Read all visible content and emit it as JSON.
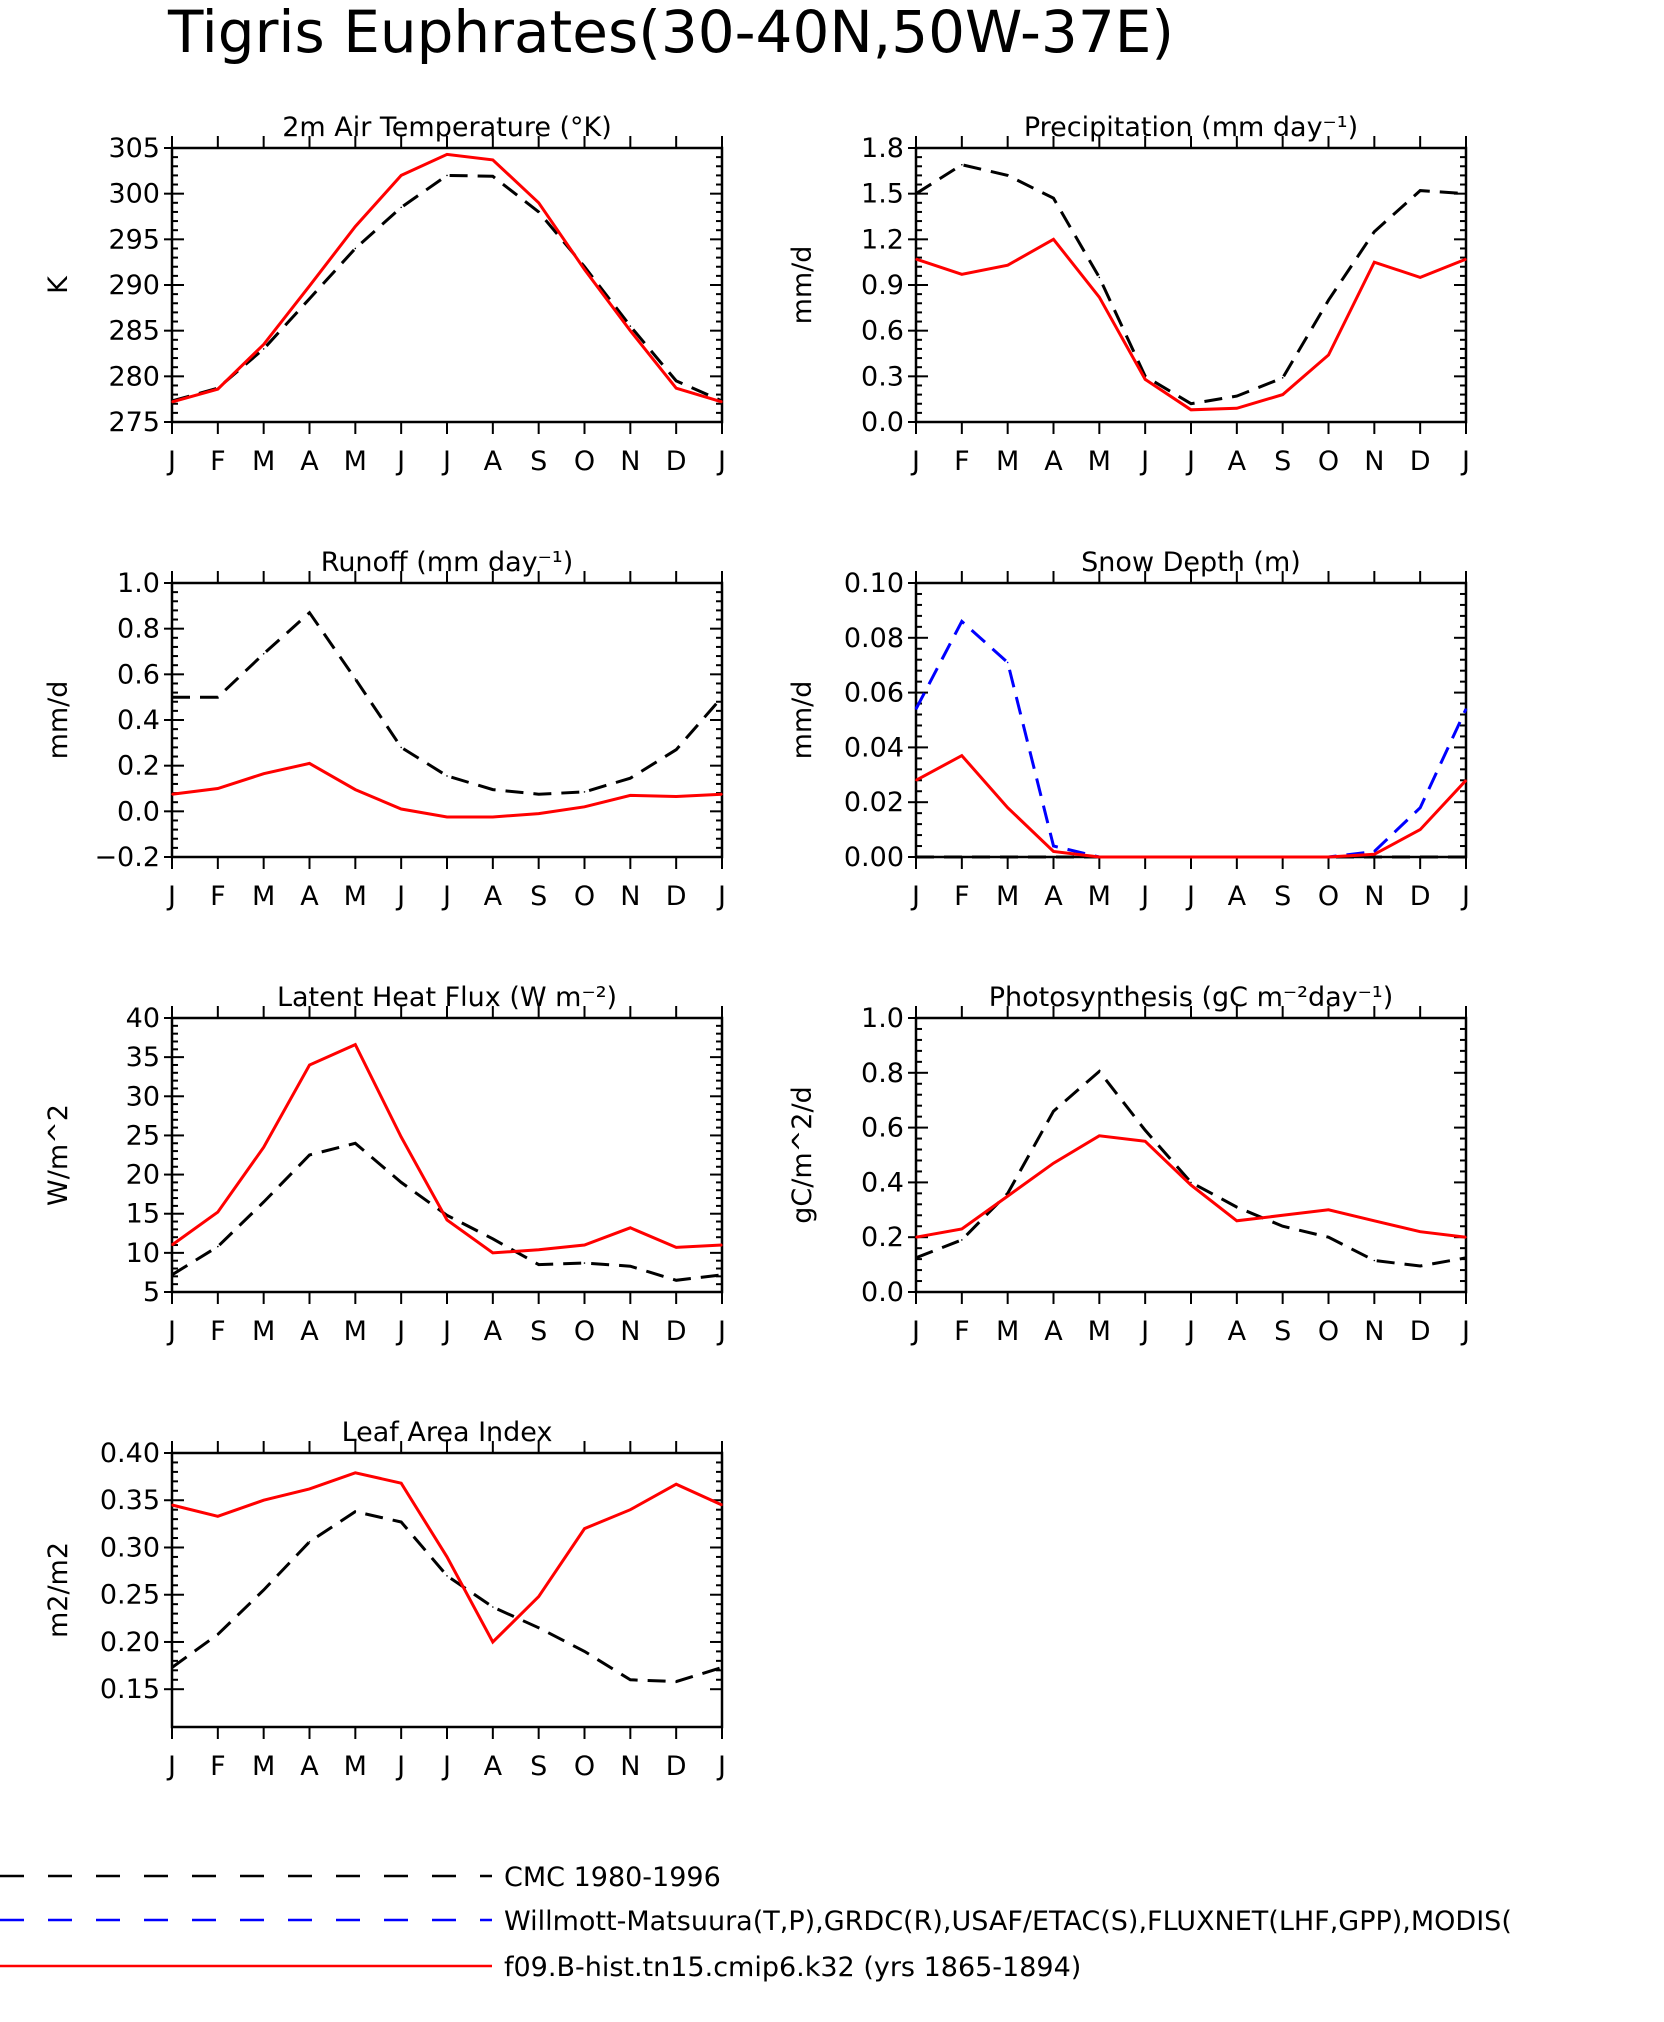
{
  "title": "Tigris Euphrates(30-40N,50W-37E)",
  "months": [
    "J",
    "F",
    "M",
    "A",
    "M",
    "J",
    "J",
    "A",
    "S",
    "O",
    "N",
    "D",
    "J"
  ],
  "legend": [
    {
      "key": "cmc",
      "label": "CMC 1980-1996",
      "color": "#000000",
      "dash": true
    },
    {
      "key": "obs",
      "label": "Willmott-Matsuura(T,P),GRDC(R),USAF/ETAC(S),FLUXNET(LHF,GPP),MODIS(",
      "color": "#0000ff",
      "dash": true
    },
    {
      "key": "model",
      "label": "f09.B-hist.tn15.cmip6.k32 (yrs 1865-1894)",
      "color": "#ff0000",
      "dash": false
    }
  ],
  "chart_data": [
    {
      "type": "line",
      "title": "2m Air Temperature (°K)",
      "ylabel": "K",
      "ylim": [
        275,
        305
      ],
      "yticks": [
        "275",
        "280",
        "285",
        "290",
        "295",
        "300",
        "305"
      ],
      "series": [
        {
          "key": "cmc",
          "values": [
            277.3,
            278.7,
            283.0,
            288.5,
            294.0,
            298.5,
            302.0,
            301.9,
            298.0,
            292.0,
            285.5,
            279.5,
            277.3
          ]
        },
        {
          "key": "model",
          "values": [
            277.2,
            278.6,
            283.5,
            289.9,
            296.4,
            302.0,
            304.3,
            303.7,
            299.0,
            291.7,
            285.0,
            278.7,
            277.2
          ]
        }
      ]
    },
    {
      "type": "line",
      "title": "Precipitation (mm day⁻¹)",
      "ylabel": "mm/d",
      "ylim": [
        0,
        1.8
      ],
      "yticks": [
        "0.0",
        "0.3",
        "0.6",
        "0.9",
        "1.2",
        "1.5",
        "1.8"
      ],
      "series": [
        {
          "key": "cmc",
          "values": [
            1.5,
            1.69,
            1.62,
            1.47,
            0.95,
            0.3,
            0.12,
            0.17,
            0.29,
            0.8,
            1.25,
            1.52,
            1.5
          ]
        },
        {
          "key": "model",
          "values": [
            1.07,
            0.97,
            1.03,
            1.2,
            0.82,
            0.28,
            0.08,
            0.09,
            0.18,
            0.44,
            1.05,
            0.95,
            1.07
          ]
        }
      ]
    },
    {
      "type": "line",
      "title": "Runoff (mm day⁻¹)",
      "ylabel": "mm/d",
      "ylim": [
        -0.2,
        1.0
      ],
      "yticks": [
        "−0.2",
        "0.0",
        "0.2",
        "0.4",
        "0.6",
        "0.8",
        "1.0"
      ],
      "series": [
        {
          "key": "cmc",
          "values": [
            0.5,
            0.5,
            0.69,
            0.87,
            0.58,
            0.28,
            0.155,
            0.095,
            0.075,
            0.085,
            0.145,
            0.27,
            0.5
          ]
        },
        {
          "key": "model",
          "values": [
            0.075,
            0.1,
            0.165,
            0.21,
            0.095,
            0.01,
            -0.025,
            -0.025,
            -0.01,
            0.02,
            0.07,
            0.065,
            0.075
          ]
        }
      ]
    },
    {
      "type": "line",
      "title": "Snow Depth (m)",
      "ylabel": "mm/d",
      "ylim": [
        0,
        0.1
      ],
      "yticks": [
        "0.00",
        "0.02",
        "0.04",
        "0.06",
        "0.08",
        "0.10"
      ],
      "series": [
        {
          "key": "cmc",
          "values": [
            0,
            0,
            0,
            0,
            0,
            0,
            0,
            0,
            0,
            0,
            0,
            0,
            0
          ]
        },
        {
          "key": "obs",
          "values": [
            0.054,
            0.086,
            0.071,
            0.004,
            0.0,
            0,
            0,
            0,
            0,
            0.0,
            0.002,
            0.018,
            0.054
          ]
        },
        {
          "key": "model",
          "values": [
            0.028,
            0.037,
            0.018,
            0.002,
            0.0,
            0,
            0,
            0,
            0,
            0,
            0.001,
            0.01,
            0.028
          ]
        }
      ]
    },
    {
      "type": "line",
      "title": "Latent Heat Flux (W m⁻²)",
      "ylabel": "W/m^2",
      "ylim": [
        5,
        40
      ],
      "yticks": [
        "5",
        "10",
        "15",
        "20",
        "25",
        "30",
        "35",
        "40"
      ],
      "series": [
        {
          "key": "cmc",
          "values": [
            7.2,
            10.8,
            16.5,
            22.5,
            24.0,
            19.0,
            14.8,
            11.8,
            8.5,
            8.7,
            8.3,
            6.5,
            7.2
          ]
        },
        {
          "key": "model",
          "values": [
            11.0,
            15.2,
            23.5,
            34.0,
            36.6,
            24.8,
            14.2,
            10.0,
            10.4,
            11.0,
            13.2,
            10.7,
            11.0
          ]
        }
      ]
    },
    {
      "type": "line",
      "title": "Photosynthesis (gC m⁻²day⁻¹)",
      "ylabel": "gC/m^2/d",
      "ylim": [
        0,
        1.0
      ],
      "yticks": [
        "0.0",
        "0.2",
        "0.4",
        "0.6",
        "0.8",
        "1.0"
      ],
      "series": [
        {
          "key": "cmc",
          "values": [
            0.125,
            0.19,
            0.36,
            0.66,
            0.805,
            0.59,
            0.4,
            0.31,
            0.24,
            0.2,
            0.115,
            0.095,
            0.125
          ]
        },
        {
          "key": "model",
          "values": [
            0.2,
            0.23,
            0.35,
            0.47,
            0.57,
            0.55,
            0.39,
            0.26,
            0.28,
            0.3,
            0.26,
            0.22,
            0.2
          ]
        }
      ]
    },
    {
      "type": "line",
      "title": "Leaf Area Index",
      "ylabel": "m2/m2",
      "ylim": [
        0.11,
        0.4
      ],
      "yticks": [
        "0.15",
        "0.20",
        "0.25",
        "0.30",
        "0.35",
        "0.40"
      ],
      "series": [
        {
          "key": "cmc",
          "values": [
            0.173,
            0.208,
            0.255,
            0.306,
            0.338,
            0.327,
            0.27,
            0.237,
            0.215,
            0.19,
            0.16,
            0.158,
            0.173
          ]
        },
        {
          "key": "model",
          "values": [
            0.345,
            0.333,
            0.35,
            0.362,
            0.379,
            0.368,
            0.29,
            0.2,
            0.248,
            0.32,
            0.34,
            0.367,
            0.345
          ]
        }
      ]
    }
  ]
}
